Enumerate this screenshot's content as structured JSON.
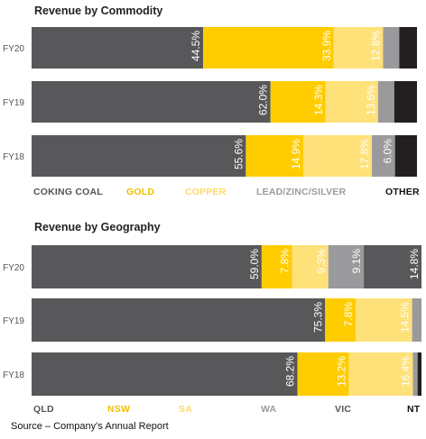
{
  "source": "Source – Company’s Annual Report",
  "chart_data": [
    {
      "type": "bar",
      "orientation": "horizontal",
      "stacked": true,
      "title": "Revenue by Commodity",
      "categories": [
        "FY20",
        "FY19",
        "FY18"
      ],
      "series": [
        {
          "name": "COKING COAL",
          "color": "#58585a",
          "values": [
            44.5,
            62.0,
            55.6
          ],
          "labels": [
            "44.5%",
            "62.0%",
            "55.6%"
          ]
        },
        {
          "name": "GOLD",
          "color": "#ffcc00",
          "values": [
            33.9,
            14.3,
            14.9
          ],
          "labels": [
            "33.9%",
            "14.3%",
            "14.9%"
          ]
        },
        {
          "name": "COPPER",
          "color": "#ffe17a",
          "values": [
            12.8,
            13.6,
            17.8
          ],
          "labels": [
            "12.8%",
            "13.6%",
            "17.8%"
          ]
        },
        {
          "name": "LEAD/ZINC/SILVER",
          "color": "#9a9a9c",
          "values": [
            4.2,
            4.2,
            6.0
          ],
          "labels": [
            "",
            "",
            "6.0%"
          ]
        },
        {
          "name": "OTHER",
          "color": "#231f20",
          "values": [
            4.6,
            5.9,
            5.7
          ],
          "labels": [
            "",
            "",
            ""
          ]
        }
      ],
      "legend_placement": "bottom",
      "legend_colors": [
        "#555555",
        "#f0c000",
        "#fcd96a",
        "#9a9a9c",
        "#111111"
      ],
      "xlim": [
        0,
        100
      ]
    },
    {
      "type": "bar",
      "orientation": "horizontal",
      "stacked": true,
      "title": "Revenue by Geography",
      "categories": [
        "FY20",
        "FY19",
        "FY18"
      ],
      "series": [
        {
          "name": "QLD",
          "color": "#58585a",
          "values": [
            59.0,
            75.3,
            68.2
          ],
          "labels": [
            "59.0%",
            "75.3%",
            "68.2%"
          ]
        },
        {
          "name": "NSW",
          "color": "#ffcc00",
          "values": [
            7.8,
            7.8,
            13.2
          ],
          "labels": [
            "7.8%",
            "7.8%",
            "13.2%"
          ]
        },
        {
          "name": "SA",
          "color": "#ffe17a",
          "values": [
            9.3,
            14.5,
            16.4
          ],
          "labels": [
            "9.3%",
            "14.5%",
            "16.4%"
          ]
        },
        {
          "name": "WA",
          "color": "#9a9a9c",
          "values": [
            9.1,
            2.4,
            1.2
          ],
          "labels": [
            "9.1%",
            "",
            ""
          ]
        },
        {
          "name": "VIC",
          "color": "#58585a",
          "values": [
            14.8,
            0,
            0
          ],
          "labels": [
            "14.8%",
            "",
            ""
          ]
        },
        {
          "name": "NT",
          "color": "#231f20",
          "values": [
            0,
            0,
            1.0
          ],
          "labels": [
            "",
            "",
            ""
          ]
        }
      ],
      "legend_placement": "bottom",
      "legend_colors": [
        "#555555",
        "#f0c000",
        "#fcd96a",
        "#9a9a9c",
        "#555555",
        "#111111"
      ],
      "xlim": [
        0,
        100
      ]
    }
  ]
}
